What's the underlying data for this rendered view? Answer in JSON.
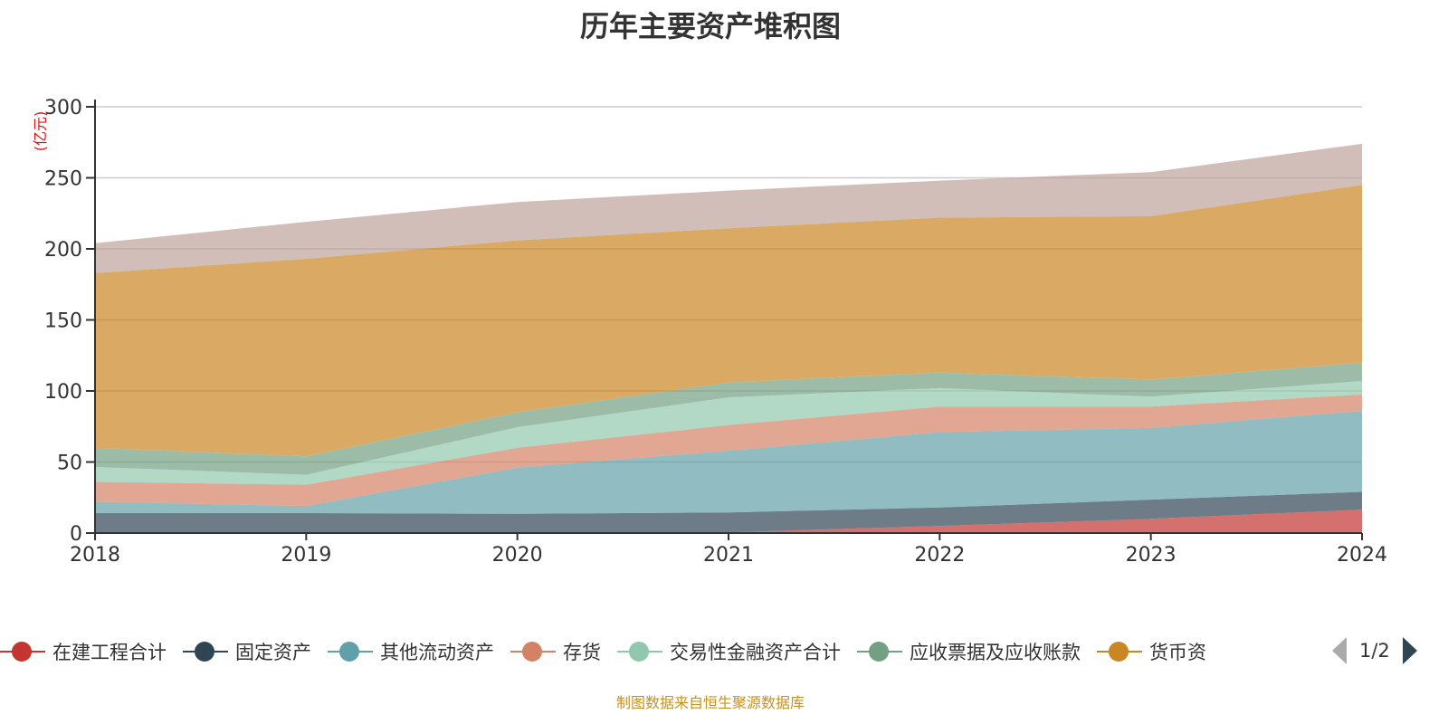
{
  "title": "历年主要资产堆积图",
  "source": "制图数据来自恒生聚源数据库",
  "legend_pager": "1/2",
  "chart_data": {
    "type": "area",
    "stacked": true,
    "title": "历年主要资产堆积图",
    "ylabel": "(亿元)",
    "xlabel": "",
    "x": [
      "2018",
      "2019",
      "2020",
      "2021",
      "2022",
      "2023",
      "2024"
    ],
    "ylim": [
      0,
      300
    ],
    "yticks": [
      0,
      50,
      100,
      150,
      200,
      250,
      300
    ],
    "grid": true,
    "legend_position": "bottom",
    "series": [
      {
        "name": "在建工程合计",
        "color": "#c23531",
        "values": [
          0,
          0,
          0,
          0.5,
          5,
          10,
          16.5
        ]
      },
      {
        "name": "固定资产",
        "color": "#2f4554",
        "values": [
          14,
          14,
          13.5,
          14,
          13,
          13.5,
          12.5
        ]
      },
      {
        "name": "其他流动资产",
        "color": "#61a0a8",
        "values": [
          8,
          5,
          32.5,
          43.5,
          53,
          50.5,
          57
        ]
      },
      {
        "name": "存货",
        "color": "#d48265",
        "values": [
          14,
          15,
          14,
          18,
          18,
          15,
          11.5
        ]
      },
      {
        "name": "交易性金融资产合计",
        "color": "#91c7ae",
        "values": [
          10.5,
          7,
          14.5,
          19.5,
          13,
          7,
          9.5
        ]
      },
      {
        "name": "应收票据及应收账款",
        "color": "#749f83",
        "values": [
          13.5,
          13,
          10.5,
          10.5,
          11,
          12,
          13
        ]
      },
      {
        "name": "货币资金",
        "color": "#ca8622",
        "values": [
          123,
          139,
          121,
          108.5,
          109,
          115,
          125
        ]
      },
      {
        "name": "",
        "color": "#bda29a",
        "values": [
          21,
          26,
          27,
          26.5,
          26,
          31,
          29
        ]
      }
    ]
  }
}
